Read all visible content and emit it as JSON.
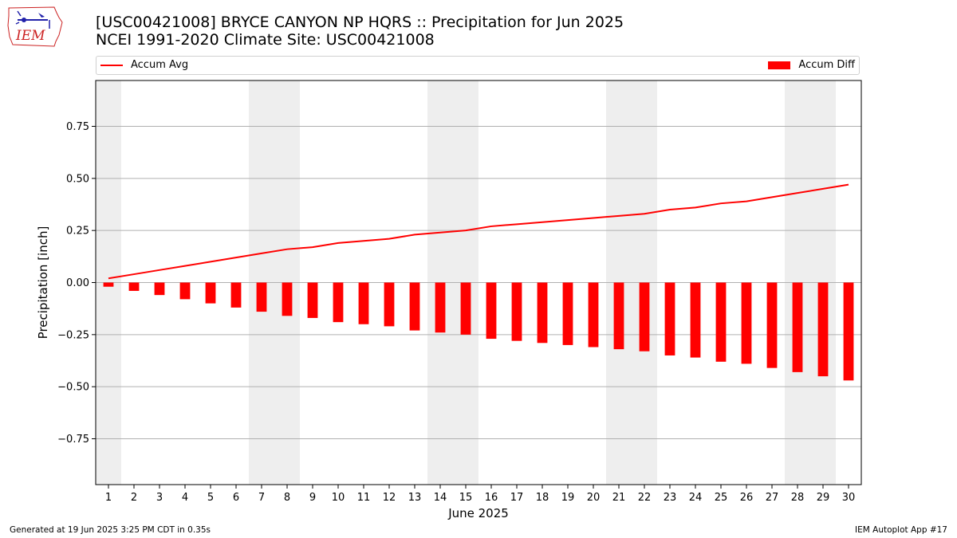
{
  "header": {
    "title_line1": "[USC00421008] BRYCE CANYON NP HQRS :: Precipitation for Jun 2025",
    "title_line2": "NCEI 1991-2020 Climate Site: USC00421008"
  },
  "logo": {
    "text": "IEM",
    "icon": "iowa-state-map-logo-icon"
  },
  "legend": {
    "position": "top",
    "line_label": "Accum Avg",
    "bar_label": "Accum Diff"
  },
  "footer": {
    "left": "Generated at 19 Jun 2025 3:25 PM CDT in 0.35s",
    "right": "IEM Autoplot App #17"
  },
  "colors": {
    "series": "#ff0000",
    "weekend_shade": "#eeeeee",
    "grid": "#b0b0b0"
  },
  "chart_data": {
    "type": "bar",
    "title": "[USC00421008] BRYCE CANYON NP HQRS :: Precipitation for Jun 2025",
    "subtitle": "NCEI 1991-2020 Climate Site: USC00421008",
    "xlabel": "June 2025",
    "ylabel": "Precipitation [inch]",
    "ylim": [
      -0.97,
      0.97
    ],
    "yticks": [
      -0.75,
      -0.5,
      -0.25,
      0.0,
      0.25,
      0.5,
      0.75
    ],
    "ytick_labels": [
      "−0.75",
      "−0.50",
      "−0.25",
      "0.00",
      "0.25",
      "0.50",
      "0.75"
    ],
    "grid": "horizontal",
    "categories": [
      "1",
      "2",
      "3",
      "4",
      "5",
      "6",
      "7",
      "8",
      "9",
      "10",
      "11",
      "12",
      "13",
      "14",
      "15",
      "16",
      "17",
      "18",
      "19",
      "20",
      "21",
      "22",
      "23",
      "24",
      "25",
      "26",
      "27",
      "28",
      "29",
      "30"
    ],
    "weekend_shaded_days": [
      1,
      7,
      8,
      14,
      15,
      21,
      22,
      28,
      29
    ],
    "series": [
      {
        "name": "Accum Avg",
        "type": "line",
        "values": [
          0.02,
          0.04,
          0.06,
          0.08,
          0.1,
          0.12,
          0.14,
          0.16,
          0.17,
          0.19,
          0.2,
          0.21,
          0.23,
          0.24,
          0.25,
          0.27,
          0.28,
          0.29,
          0.3,
          0.31,
          0.32,
          0.33,
          0.35,
          0.36,
          0.38,
          0.39,
          0.41,
          0.43,
          0.45,
          0.47
        ]
      },
      {
        "name": "Accum Diff",
        "type": "bar",
        "values": [
          -0.02,
          -0.04,
          -0.06,
          -0.08,
          -0.1,
          -0.12,
          -0.14,
          -0.16,
          -0.17,
          -0.19,
          -0.2,
          -0.21,
          -0.23,
          -0.24,
          -0.25,
          -0.27,
          -0.28,
          -0.29,
          -0.3,
          -0.31,
          -0.32,
          -0.33,
          -0.35,
          -0.36,
          -0.38,
          -0.39,
          -0.41,
          -0.43,
          -0.45,
          -0.47
        ]
      }
    ]
  }
}
